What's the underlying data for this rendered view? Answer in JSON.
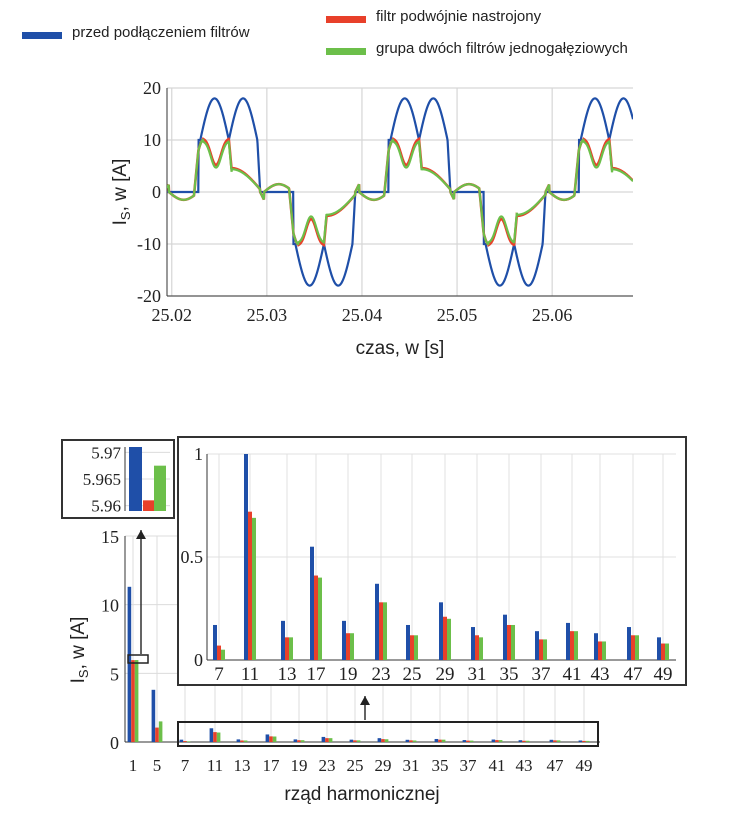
{
  "legend": [
    {
      "label": "przed podłączeniem filtrów",
      "color": "#1f4fa8"
    },
    {
      "label": "filtr podwójnie nastrojony",
      "color": "#e8402a"
    },
    {
      "label": "grupa dwóch filtrów jednogałęziowych",
      "color": "#6cbf4a"
    }
  ],
  "chart_data": [
    {
      "type": "line",
      "xlabel": "czas, w [s]",
      "ylabel": "I_S, w [A]",
      "xlim": [
        25.0195,
        25.0685
      ],
      "ylim": [
        -20,
        20
      ],
      "xticks": [
        "25.02",
        "25.03",
        "25.04",
        "25.05",
        "25.06"
      ],
      "yticks": [
        "-20",
        "-10",
        "0",
        "10",
        "20"
      ],
      "period_s": 0.02,
      "grid": true,
      "series": [
        {
          "name": "przed podłączeniem filtrów",
          "color": "#1f4fa8",
          "peak": 18,
          "step": 10
        },
        {
          "name": "filtr podwójnie nastrojony",
          "color": "#e8402a",
          "peak": 10.2
        },
        {
          "name": "grupa dwóch filtrów jednogałęziowych",
          "color": "#6cbf4a",
          "peak": 9.7
        }
      ]
    },
    {
      "type": "bar",
      "xlabel": "rząd harmonicznej",
      "ylabel": "I_S, w [A]",
      "ylim": [
        0,
        15
      ],
      "yticks": [
        "0",
        "5",
        "10",
        "15"
      ],
      "categories": [
        "1",
        "5",
        "7",
        "11",
        "13",
        "17",
        "19",
        "23",
        "25",
        "29",
        "31",
        "35",
        "37",
        "41",
        "43",
        "47",
        "49"
      ],
      "series": [
        {
          "name": "przed podłączeniem filtrów",
          "color": "#1f4fa8",
          "values": [
            11.3,
            3.8,
            0.17,
            1.0,
            0.19,
            0.55,
            0.19,
            0.37,
            0.17,
            0.28,
            0.16,
            0.22,
            0.14,
            0.18,
            0.13,
            0.16,
            0.11
          ]
        },
        {
          "name": "filtr podwójnie nastrojony",
          "color": "#e8402a",
          "values": [
            5.961,
            1.05,
            0.07,
            0.72,
            0.11,
            0.41,
            0.13,
            0.28,
            0.12,
            0.21,
            0.12,
            0.17,
            0.1,
            0.14,
            0.09,
            0.12,
            0.08
          ]
        },
        {
          "name": "grupa dwóch filtrów jednogałęziowych",
          "color": "#6cbf4a",
          "values": [
            5.9675,
            1.5,
            0.05,
            0.69,
            0.11,
            0.4,
            0.13,
            0.28,
            0.12,
            0.2,
            0.11,
            0.17,
            0.1,
            0.14,
            0.09,
            0.12,
            0.08
          ]
        }
      ],
      "insets": [
        {
          "type": "bar",
          "ylim": [
            5.959,
            5.971
          ],
          "yticks": [
            "5.96",
            "5.965",
            "5.97"
          ],
          "category": "1"
        },
        {
          "type": "bar",
          "ylim": [
            0,
            1
          ],
          "yticks": [
            "0",
            "0.5",
            "1"
          ],
          "categories": [
            "7",
            "11",
            "13",
            "17",
            "19",
            "23",
            "25",
            "29",
            "31",
            "35",
            "37",
            "41",
            "43",
            "47",
            "49"
          ]
        }
      ]
    }
  ]
}
